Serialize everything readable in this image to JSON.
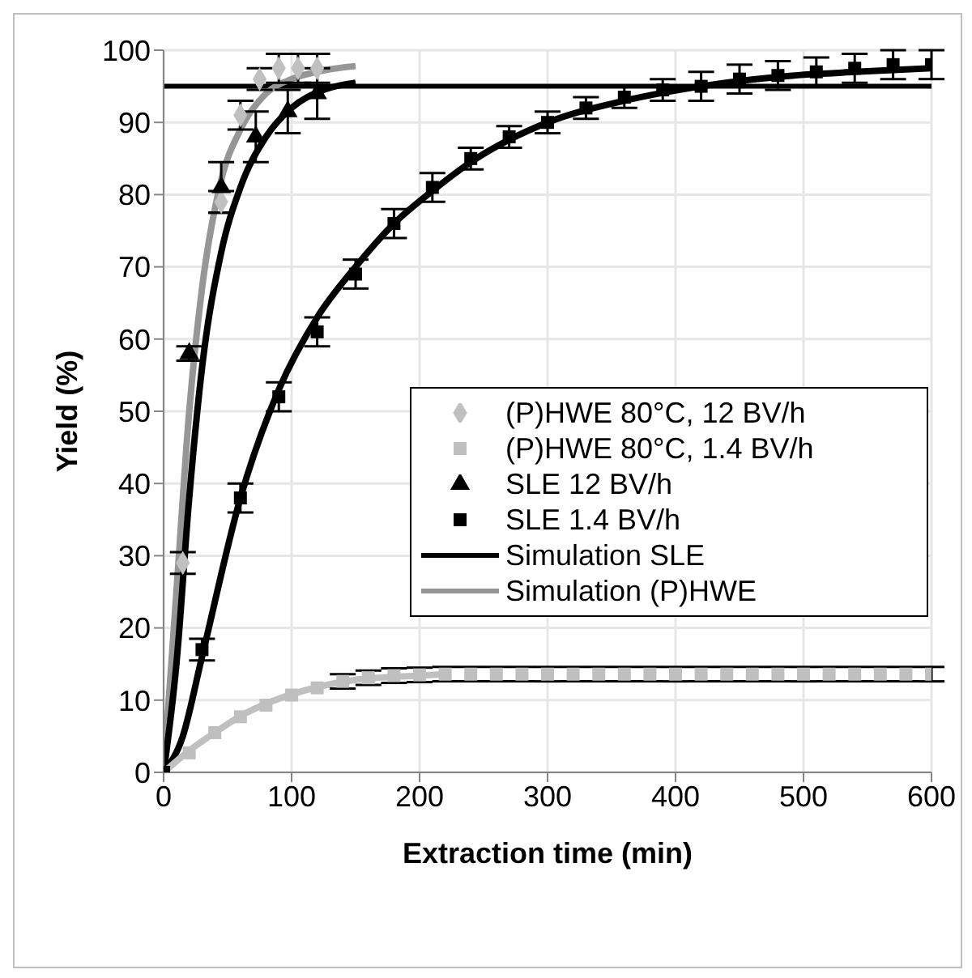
{
  "chart_data": {
    "type": "scatter",
    "xlabel": "Extraction time (min)",
    "ylabel": "Yield (%)",
    "xlim": [
      0,
      600
    ],
    "xticks": [
      0,
      100,
      200,
      300,
      400,
      500,
      600
    ],
    "ylim": [
      0,
      100
    ],
    "yticks": [
      0,
      10,
      20,
      30,
      40,
      50,
      60,
      70,
      80,
      90,
      100
    ],
    "grid": true,
    "legend": "right",
    "ref_lines": [
      {
        "axis": "y",
        "value": 95,
        "color": "#000000"
      }
    ],
    "series": [
      {
        "name": "(P)HWE 80°C, 12 BV/h",
        "marker": "diamond",
        "color": "#c0c0c0",
        "x": [
          15,
          45,
          60,
          75,
          90,
          105,
          120
        ],
        "values": [
          29,
          79,
          91,
          96,
          97.5,
          97.5,
          97.5
        ],
        "errors": [
          1.5,
          1.5,
          2,
          1.5,
          2,
          2,
          2
        ]
      },
      {
        "name": "(P)HWE 80°C, 1.4 BV/h",
        "marker": "square",
        "color": "#bfbfbf",
        "x": [
          20,
          40,
          60,
          80,
          100,
          120,
          140,
          160,
          180,
          200,
          220,
          240,
          260,
          280,
          300,
          320,
          340,
          360,
          380,
          400,
          420,
          440,
          460,
          480,
          500,
          520,
          540,
          560,
          580,
          600
        ],
        "values": [
          2.7,
          5.5,
          7.7,
          9.3,
          10.7,
          11.7,
          12.6,
          13.1,
          13.4,
          13.5,
          13.6,
          13.6,
          13.6,
          13.6,
          13.6,
          13.6,
          13.6,
          13.6,
          13.6,
          13.6,
          13.6,
          13.6,
          13.6,
          13.6,
          13.6,
          13.6,
          13.6,
          13.6,
          13.6,
          13.6
        ],
        "errors": [
          null,
          null,
          null,
          null,
          null,
          null,
          1,
          1,
          1,
          1,
          1,
          1,
          1,
          1,
          1,
          1,
          1,
          1,
          1,
          1,
          1,
          1,
          1,
          1,
          1,
          1,
          1,
          1,
          1,
          1
        ]
      },
      {
        "name": "SLE 12 BV/h",
        "marker": "triangle",
        "color": "#000000",
        "x": [
          20,
          45,
          72,
          97,
          120
        ],
        "values": [
          58,
          81,
          88,
          91.5,
          94
        ],
        "errors": [
          1,
          3.5,
          3.5,
          3,
          3.5
        ]
      },
      {
        "name": "SLE 1.4 BV/h",
        "marker": "square",
        "color": "#000000",
        "x": [
          0,
          30,
          60,
          90,
          120,
          150,
          180,
          210,
          240,
          270,
          300,
          330,
          360,
          390,
          420,
          450,
          480,
          510,
          540,
          570,
          600
        ],
        "values": [
          0,
          17,
          38,
          52,
          61,
          69,
          76,
          81,
          85,
          88,
          90,
          92,
          93.5,
          94.5,
          95,
          96,
          96.5,
          97,
          97.5,
          98,
          98
        ],
        "errors": [
          null,
          1.5,
          2,
          2,
          2,
          2,
          2,
          2,
          1.5,
          1.5,
          1.5,
          1.5,
          1.5,
          1.5,
          2,
          2,
          2,
          2,
          2,
          2,
          2
        ]
      },
      {
        "name": "Simulation SLE",
        "type": "line",
        "marker": "none",
        "color": "#000000",
        "x": [
          0,
          15,
          30,
          60,
          90,
          120,
          150,
          180,
          210,
          240,
          300,
          360,
          420,
          480,
          540,
          600
        ],
        "values": [
          0,
          5,
          16,
          38,
          53,
          63,
          70,
          76,
          80.5,
          84.5,
          90,
          93,
          95,
          96.3,
          97,
          97.5
        ]
      },
      {
        "name": "Simulation (P)HWE",
        "type": "line",
        "marker": "none",
        "color": "#969696",
        "x": [
          0,
          10,
          20,
          30,
          45,
          60,
          80,
          100,
          125,
          150
        ],
        "values": [
          0,
          25,
          50,
          67,
          82,
          89,
          94,
          96,
          97.2,
          97.8
        ]
      },
      {
        "type": "line",
        "marker": "none",
        "color": "#000000",
        "x": [
          0,
          10,
          20,
          30,
          45,
          60,
          80,
          100,
          125,
          150
        ],
        "values": [
          0,
          15,
          38,
          56,
          72,
          81,
          88,
          92,
          94.5,
          95.5
        ]
      },
      {
        "type": "line",
        "marker": "none",
        "color": "#c0c0c0",
        "x": [
          0,
          20,
          40,
          60,
          80,
          100,
          120,
          150,
          200,
          220
        ],
        "values": [
          0,
          3,
          5.5,
          7.8,
          9.5,
          10.8,
          11.8,
          12.8,
          13.4,
          13.6
        ]
      }
    ]
  }
}
